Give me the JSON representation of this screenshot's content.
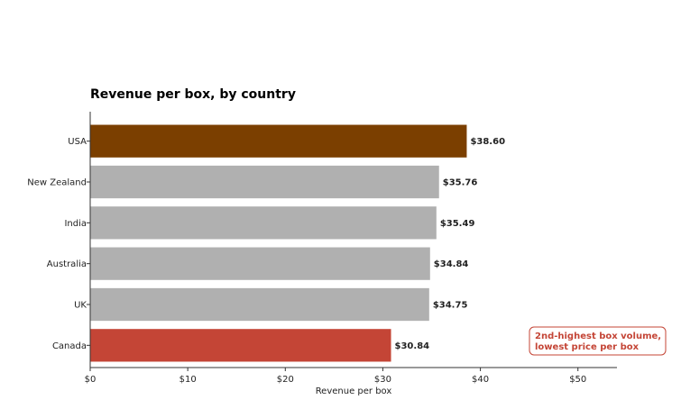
{
  "chart_data": {
    "type": "bar",
    "orientation": "horizontal",
    "title": "Revenue per box, by country",
    "xlabel": "Revenue per box",
    "ylabel": "",
    "xlim": [
      0,
      54
    ],
    "x_ticks": [
      0,
      10,
      20,
      30,
      40,
      50
    ],
    "x_tick_labels": [
      "$0",
      "$10",
      "$20",
      "$30",
      "$40",
      "$50"
    ],
    "categories": [
      "USA",
      "New Zealand",
      "India",
      "Australia",
      "UK",
      "Canada"
    ],
    "values": [
      38.6,
      35.76,
      35.49,
      34.84,
      34.75,
      30.84
    ],
    "value_labels": [
      "$38.60",
      "$35.76",
      "$35.49",
      "$34.84",
      "$34.75",
      "$30.84"
    ],
    "colors": [
      "#7b3f00",
      "#b0b0b0",
      "#b0b0b0",
      "#b0b0b0",
      "#b0b0b0",
      "#c44536"
    ],
    "grid": false,
    "annotation": {
      "lines": [
        "2nd-highest box volume,",
        "lowest price per box"
      ],
      "category": "Canada",
      "color": "#c44536"
    }
  }
}
